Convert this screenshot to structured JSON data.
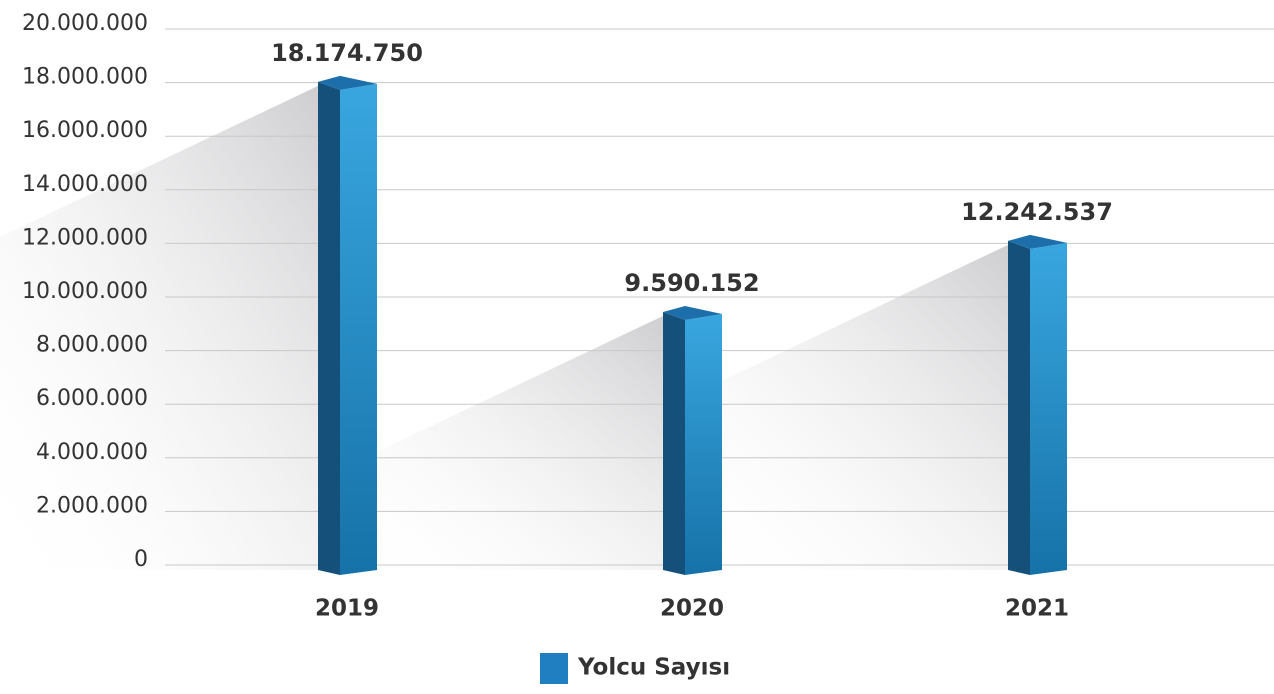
{
  "chart_data": {
    "type": "bar",
    "categories": [
      "2019",
      "2020",
      "2021"
    ],
    "series": [
      {
        "name": "Yolcu Sayısı",
        "color": "#1f7fc0",
        "values": [
          18174750,
          9590152,
          12242537
        ],
        "value_labels": [
          "18.174.750",
          "9.590.152",
          "12.242.537"
        ]
      }
    ],
    "ylim": [
      0,
      20000000
    ],
    "yticks": [
      0,
      {
        "value": 2000000,
        "label": "2.000.000"
      },
      {
        "value": 4000000,
        "label": "4.000.000"
      },
      {
        "value": 6000000,
        "label": "6.000.000"
      },
      {
        "value": 8000000,
        "label": "8.000.000"
      },
      {
        "value": 10000000,
        "label": "10.000.000"
      },
      {
        "value": 12000000,
        "label": "12.000.000"
      },
      {
        "value": 14000000,
        "label": "14.000.000"
      },
      {
        "value": 16000000,
        "label": "16.000.000"
      },
      {
        "value": 18000000,
        "label": "18.000.000"
      },
      {
        "value": 20000000,
        "label": "20.000.000"
      }
    ],
    "grid": true,
    "legend": "bottom"
  }
}
